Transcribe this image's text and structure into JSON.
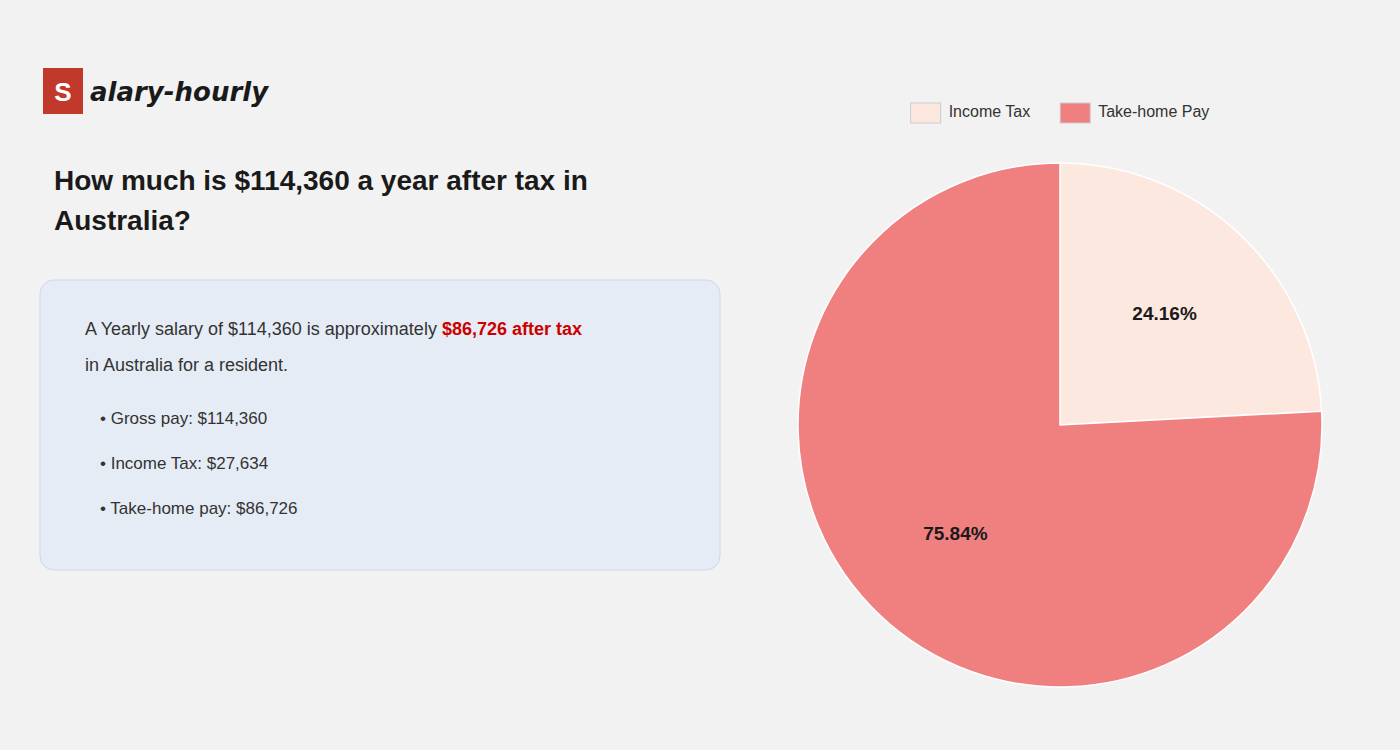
{
  "chart_data": {
    "type": "pie",
    "title": "How much is $114,360 a year after tax in\nAustralia?",
    "categories": [
      "Income Tax",
      "Take-home Pay"
    ],
    "values": [
      24.16,
      75.84
    ],
    "value_labels": [
      "24.16%",
      "75.84%"
    ],
    "colors": [
      "#fde8e0",
      "#f08080"
    ],
    "data_labels": true,
    "legend": "top",
    "annotations": [
      "S",
      "alary-hourly",
      "A Yearly salary of $114,360 is approximately ",
      "$86,726 after tax",
      "in Australia for a resident.",
      "• Gross pay: $114,360",
      "• Income Tax: $27,634",
      "• Take-home pay: $86,726"
    ]
  }
}
